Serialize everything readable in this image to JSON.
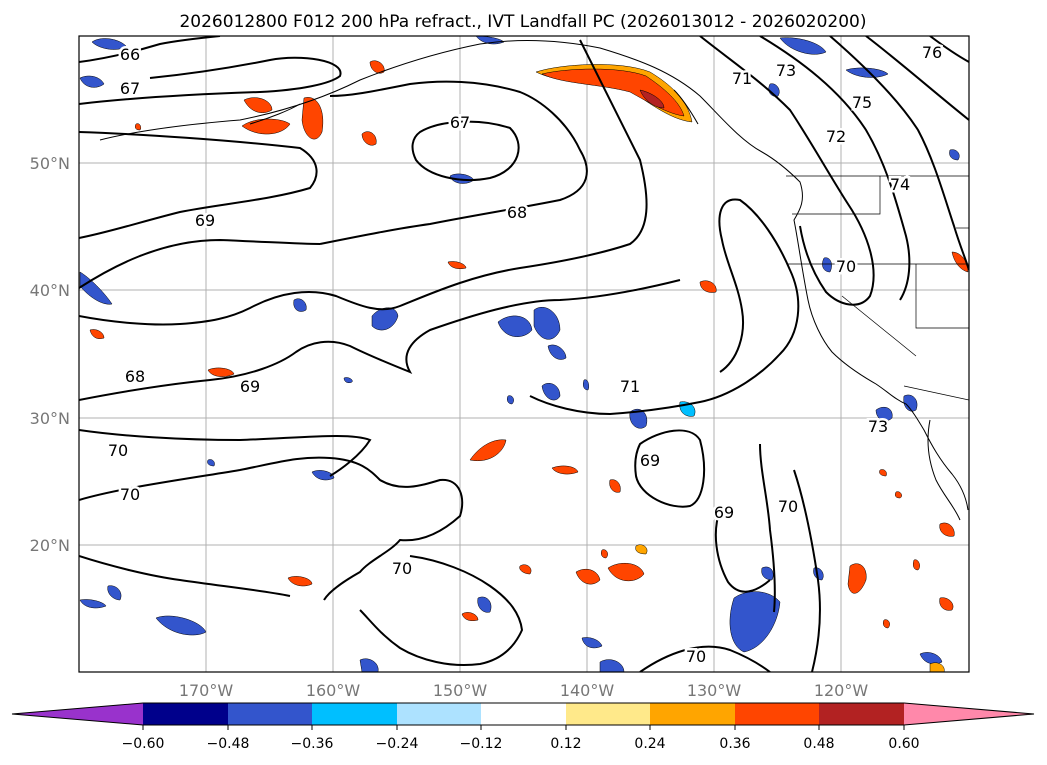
{
  "title": "2026012800 F012 200 hPa refract., IVT Landfall PC (2026013012 - 2026020200)",
  "lat_labels": [
    "50°N",
    "40°N",
    "30°N",
    "20°N"
  ],
  "lon_labels": [
    "170°W",
    "160°W",
    "150°W",
    "140°W",
    "130°W",
    "120°W"
  ],
  "contour_labels": [
    "66",
    "67",
    "67",
    "69",
    "68",
    "68",
    "69",
    "70",
    "70",
    "70",
    "71",
    "69",
    "69",
    "70",
    "70",
    "71",
    "73",
    "72",
    "75",
    "74",
    "70",
    "73",
    "76"
  ],
  "colorbar": {
    "ticks": [
      "−0.60",
      "−0.48",
      "−0.36",
      "−0.24",
      "−0.12",
      "0.12",
      "0.24",
      "0.36",
      "0.48",
      "0.60"
    ],
    "colors": {
      "under": "#9932CC",
      "neg_060": "#00008B",
      "neg_048": "#3355CC",
      "neg_036": "#00BFFF",
      "neg_024": "#ADE2FF",
      "neutral": "#FFFFFF",
      "pos_012": "#FFE98A",
      "pos_024": "#FFA500",
      "pos_036": "#FF4500",
      "pos_048": "#B22222",
      "over": "#FF88AA"
    }
  },
  "colors": {
    "contour": "#000000",
    "grid": "#b0b0b0",
    "coast": "#000000"
  }
}
